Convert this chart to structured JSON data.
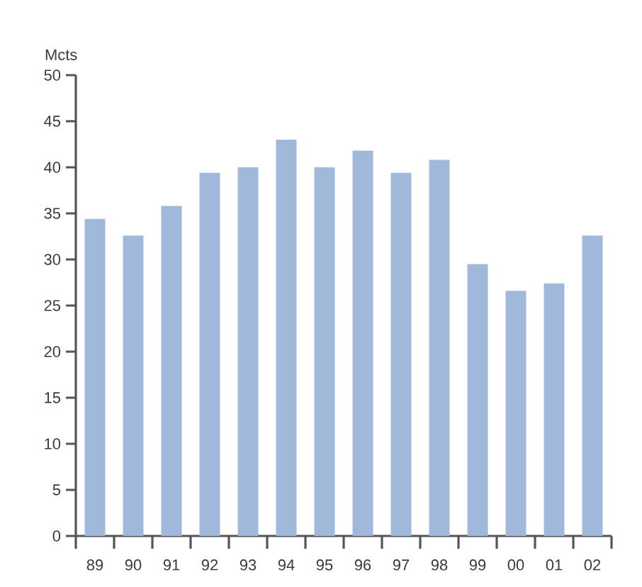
{
  "chart_data": {
    "type": "bar",
    "ylabel": "Mcts",
    "categories": [
      "89",
      "90",
      "91",
      "92",
      "93",
      "94",
      "95",
      "96",
      "97",
      "98",
      "99",
      "00",
      "01",
      "02"
    ],
    "values": [
      34.4,
      32.6,
      35.8,
      39.4,
      40.0,
      43.0,
      40.0,
      41.8,
      39.4,
      40.8,
      29.5,
      26.6,
      27.4,
      32.6
    ],
    "color": "#a0b8da",
    "ylim": [
      0,
      50
    ],
    "yticks": [
      0,
      5,
      10,
      15,
      20,
      25,
      30,
      35,
      40,
      45,
      50
    ]
  }
}
